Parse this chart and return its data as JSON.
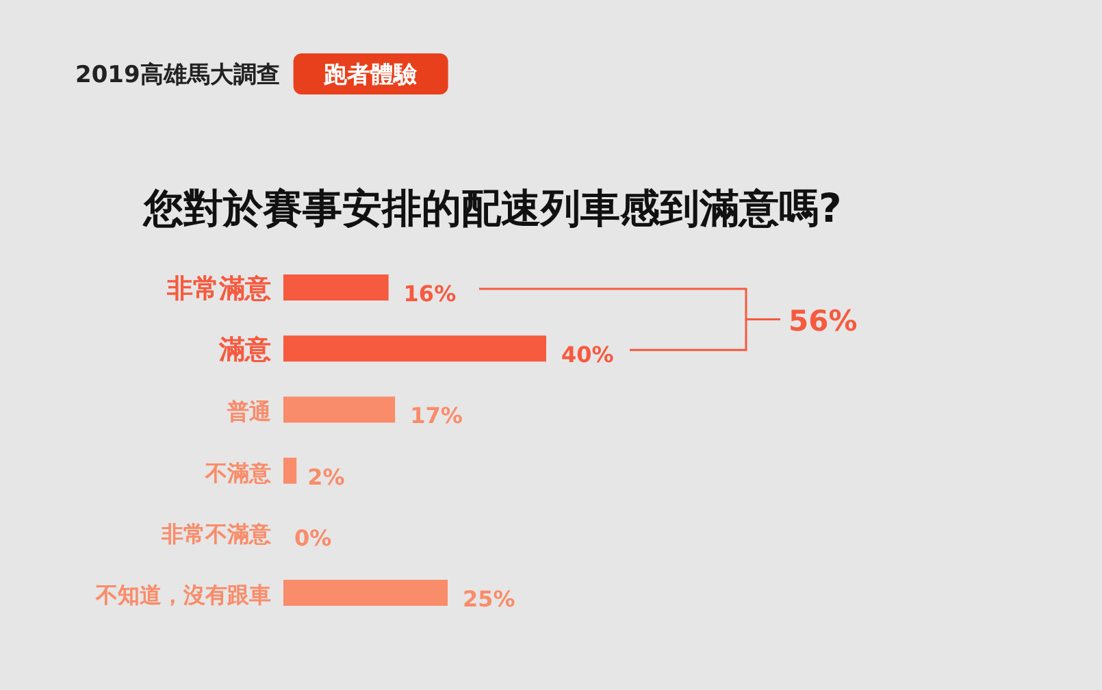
{
  "chart_data": {
    "type": "bar",
    "orientation": "horizontal",
    "title": "您對於賽事安排的配速列車感到滿意嗎?",
    "subtitle": "2019高雄馬大調查",
    "annotations": [
      "跑者體驗",
      "56%"
    ],
    "categories": [
      "非常滿意",
      "滿意",
      "普通",
      "不滿意",
      "非常不滿意",
      "不知道，沒有跟車"
    ],
    "values": [
      16,
      40,
      17,
      2,
      0,
      25
    ],
    "value_labels": [
      "16%",
      "40%",
      "17%",
      "2%",
      "0%",
      "25%"
    ],
    "colors": [
      "#f65a3f",
      "#f65a3f",
      "#f98c6a",
      "#f98c6a",
      "#f98c6a",
      "#f98c6a"
    ]
  }
}
